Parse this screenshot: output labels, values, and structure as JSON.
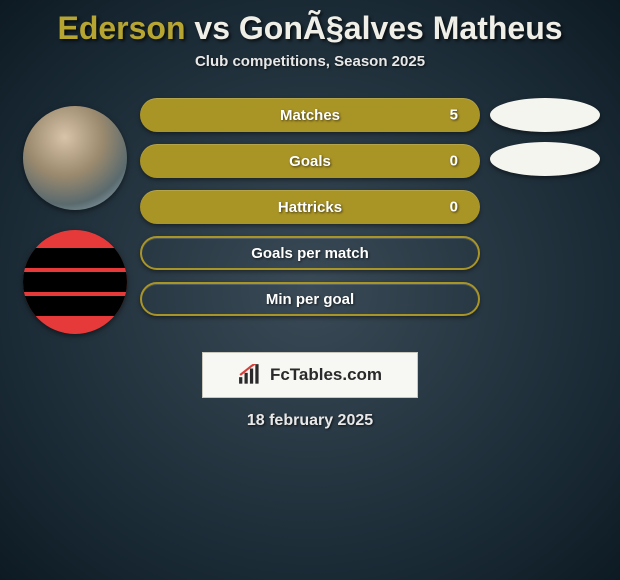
{
  "title": {
    "player1": "Ederson",
    "vs": " vs ",
    "player2": "GonÃ§alves Matheus"
  },
  "title_colors": {
    "player1": "#b7a532",
    "player2": "#efefe8"
  },
  "subtitle": "Club competitions, Season 2025",
  "stats": [
    {
      "label": "Matches",
      "value": "5",
      "filled": true,
      "color": "#a99426"
    },
    {
      "label": "Goals",
      "value": "0",
      "filled": true,
      "color": "#a99426"
    },
    {
      "label": "Hattricks",
      "value": "0",
      "filled": true,
      "color": "#a99426"
    },
    {
      "label": "Goals per match",
      "value": "",
      "filled": false,
      "color": "#a99426"
    },
    {
      "label": "Min per goal",
      "value": "",
      "filled": false,
      "color": "#a99426"
    }
  ],
  "oval_count": 2,
  "logo_text": "FcTables.com",
  "date": "18 february 2025",
  "chart": {
    "type": "stat-comparison",
    "bg_gradient": [
      "#3a4a56",
      "#1a2a35",
      "#0d1a23"
    ],
    "pill_height": 34,
    "pill_gap": 12,
    "pill_radius": 999,
    "pill_text_color": "#ffffff",
    "pill_fontsize": 15,
    "avatar_diameter": 104,
    "logo_bg": "#f7f7f3",
    "logo_border": "#c8c8bc",
    "subtitle_color": "#e8e8e8",
    "title_fontsize": 32
  }
}
